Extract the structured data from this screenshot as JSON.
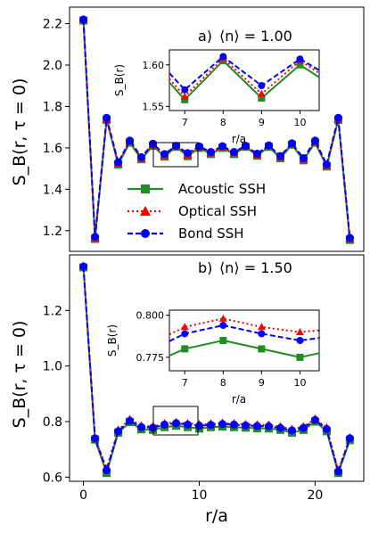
{
  "colors": {
    "acoustic": "#228b22",
    "optical": "#ff0000",
    "bond": "#0000ff"
  },
  "chart_data": [
    {
      "type": "line",
      "panel_label": "a)",
      "title": "⟨n⟩ = 1.00",
      "xlabel": "",
      "ylabel": "S_B(r, τ = 0)",
      "ylim": [
        1.1,
        2.28
      ],
      "xlim": [
        -1.2,
        24.2
      ],
      "yticks": [
        1.2,
        1.4,
        1.6,
        1.8,
        2.0,
        2.2
      ],
      "ytick_labels": [
        "1.2",
        "1.4",
        "1.6",
        "1.8",
        "2.0",
        "2.2"
      ],
      "x": [
        0,
        1,
        2,
        3,
        4,
        5,
        6,
        7,
        8,
        9,
        10,
        11,
        12,
        13,
        14,
        15,
        16,
        17,
        18,
        19,
        20,
        21,
        22,
        23
      ],
      "series": [
        {
          "name": "Acoustic SSH",
          "style": "solid",
          "marker": "square",
          "values": [
            2.215,
            1.16,
            1.735,
            1.52,
            1.625,
            1.545,
            1.61,
            1.558,
            1.605,
            1.56,
            1.6,
            1.57,
            1.6,
            1.57,
            1.605,
            1.562,
            1.605,
            1.55,
            1.615,
            1.54,
            1.625,
            1.51,
            1.735,
            1.155
          ]
        },
        {
          "name": "Optical SSH",
          "style": "dotted",
          "marker": "triangle",
          "values": [
            2.22,
            1.165,
            1.74,
            1.525,
            1.632,
            1.55,
            1.615,
            1.562,
            1.608,
            1.565,
            1.605,
            1.575,
            1.605,
            1.575,
            1.608,
            1.566,
            1.61,
            1.555,
            1.62,
            1.545,
            1.63,
            1.515,
            1.74,
            1.16
          ]
        },
        {
          "name": "Bond SSH",
          "style": "dashed",
          "marker": "circle",
          "values": [
            2.22,
            1.17,
            1.745,
            1.53,
            1.635,
            1.555,
            1.62,
            1.57,
            1.61,
            1.575,
            1.607,
            1.58,
            1.608,
            1.58,
            1.61,
            1.572,
            1.612,
            1.56,
            1.622,
            1.55,
            1.635,
            1.52,
            1.745,
            1.165
          ]
        }
      ],
      "inset": {
        "xlabel": "r/a",
        "ylabel": "S_B(r)",
        "xlim": [
          6.6,
          10.5
        ],
        "ylim": [
          1.545,
          1.618
        ],
        "xticks": [
          7,
          8,
          9,
          10
        ],
        "xtick_labels": [
          "7",
          "8",
          "9",
          "10"
        ],
        "yticks": [
          1.55,
          1.6
        ],
        "ytick_labels": [
          "1.55",
          "1.60"
        ]
      }
    },
    {
      "type": "line",
      "panel_label": "b)",
      "title": "⟨n⟩ = 1.50",
      "xlabel": "r/a",
      "ylabel": "S_B(r, τ = 0)",
      "ylim": [
        0.585,
        1.4
      ],
      "xlim": [
        -1.2,
        24.2
      ],
      "yticks": [
        0.6,
        0.8,
        1.0,
        1.2
      ],
      "ytick_labels": [
        "0.6",
        "0.8",
        "1.0",
        "1.2"
      ],
      "xticks": [
        0,
        10,
        20
      ],
      "xtick_labels": [
        "0",
        "10",
        "20"
      ],
      "x": [
        0,
        1,
        2,
        3,
        4,
        5,
        6,
        7,
        8,
        9,
        10,
        11,
        12,
        13,
        14,
        15,
        16,
        17,
        18,
        19,
        20,
        21,
        22,
        23
      ],
      "series": [
        {
          "name": "Acoustic SSH",
          "style": "solid",
          "marker": "square",
          "values": [
            1.355,
            0.735,
            0.615,
            0.76,
            0.798,
            0.772,
            0.77,
            0.78,
            0.785,
            0.78,
            0.775,
            0.78,
            0.782,
            0.78,
            0.778,
            0.776,
            0.775,
            0.77,
            0.76,
            0.77,
            0.8,
            0.765,
            0.615,
            0.733
          ]
        },
        {
          "name": "Optical SSH",
          "style": "dotted",
          "marker": "triangle",
          "values": [
            1.36,
            0.742,
            0.63,
            0.77,
            0.808,
            0.785,
            0.782,
            0.793,
            0.798,
            0.793,
            0.79,
            0.792,
            0.795,
            0.793,
            0.79,
            0.789,
            0.788,
            0.782,
            0.773,
            0.782,
            0.81,
            0.778,
            0.625,
            0.742
          ]
        },
        {
          "name": "Bond SSH",
          "style": "dashed",
          "marker": "circle",
          "values": [
            1.358,
            0.74,
            0.625,
            0.765,
            0.803,
            0.78,
            0.778,
            0.789,
            0.794,
            0.789,
            0.785,
            0.788,
            0.791,
            0.789,
            0.786,
            0.784,
            0.783,
            0.777,
            0.768,
            0.777,
            0.806,
            0.773,
            0.62,
            0.74
          ]
        }
      ],
      "inset": {
        "xlabel": "r/a",
        "ylabel": "S_B(r)",
        "xlim": [
          6.6,
          10.5
        ],
        "ylim": [
          0.767,
          0.803
        ],
        "xticks": [
          7,
          8,
          9,
          10
        ],
        "xtick_labels": [
          "7",
          "8",
          "9",
          "10"
        ],
        "yticks": [
          0.775,
          0.8
        ],
        "ytick_labels": [
          "0.775",
          "0.800"
        ]
      }
    }
  ]
}
